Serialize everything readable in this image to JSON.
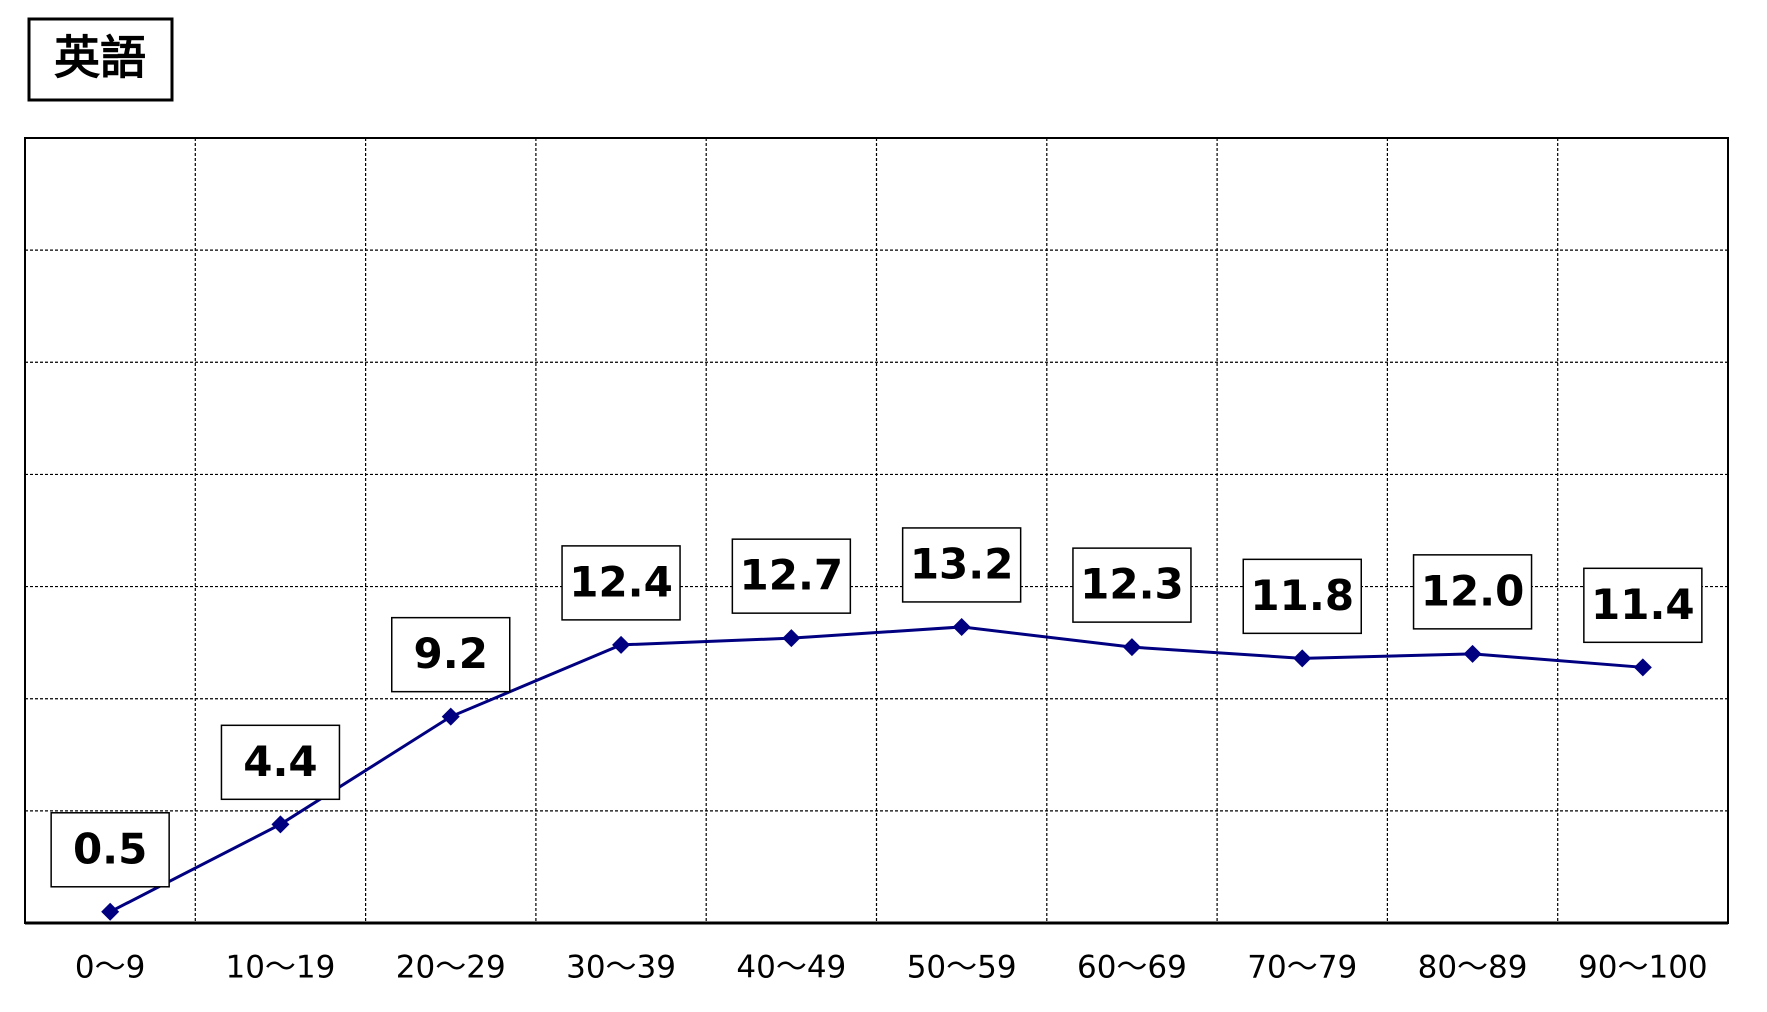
{
  "chart_data": {
    "type": "line",
    "title": "英語",
    "categories": [
      "0～9",
      "10～19",
      "20～29",
      "30～39",
      "40～49",
      "50～59",
      "60～69",
      "70～79",
      "80～89",
      "90～100"
    ],
    "values": [
      0.5,
      4.4,
      9.2,
      12.4,
      12.7,
      13.2,
      12.3,
      11.8,
      12.0,
      11.4
    ],
    "value_labels": [
      "0.5",
      "4.4",
      "9.2",
      "12.4",
      "12.7",
      "13.2",
      "12.3",
      "11.8",
      "12.0",
      "11.4"
    ],
    "color": "#000080",
    "ylim": [
      0,
      35
    ],
    "yticks": [
      0,
      5,
      10,
      15,
      20,
      25,
      30,
      35
    ],
    "grid": true
  }
}
